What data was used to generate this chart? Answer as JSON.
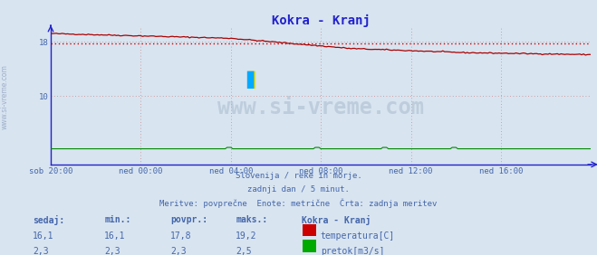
{
  "title": "Kokra - Kranj",
  "title_color": "#2222cc",
  "bg_color": "#d8e4f0",
  "plot_bg_color": "#d8e4f0",
  "x_label_color": "#4466aa",
  "y_label_color": "#4466aa",
  "text_color": "#4466aa",
  "subtitle_lines": [
    "Slovenija / reke in morje.",
    "zadnji dan / 5 minut.",
    "Meritve: povprečne  Enote: metrične  Črta: zadnja meritev"
  ],
  "x_ticks": [
    "sob 20:00",
    "ned 00:00",
    "ned 04:00",
    "ned 08:00",
    "ned 12:00",
    "ned 16:00"
  ],
  "x_tick_positions": [
    0,
    48,
    96,
    144,
    192,
    240
  ],
  "ylim": [
    0,
    20
  ],
  "xlim": [
    0,
    288
  ],
  "grid_color": "#cc8888",
  "axis_color": "#2222cc",
  "avg_line_value": 17.8,
  "avg_line_color": "#cc0000",
  "temp_color": "#aa0000",
  "flow_color": "#008800",
  "watermark": "www.si-vreme.com",
  "table_headers": [
    "sedaj:",
    "min.:",
    "povpr.:",
    "maks.:"
  ],
  "table_col1": [
    "16,1",
    "2,3"
  ],
  "table_col2": [
    "16,1",
    "2,3"
  ],
  "table_col3": [
    "17,8",
    "2,3"
  ],
  "table_col4": [
    "19,2",
    "2,5"
  ],
  "legend_title": "Kokra - Kranj",
  "legend_items": [
    "temperatura[C]",
    "pretok[m3/s]"
  ],
  "legend_colors": [
    "#cc0000",
    "#00aa00"
  ],
  "sidebar_text": "www.si-vreme.com"
}
